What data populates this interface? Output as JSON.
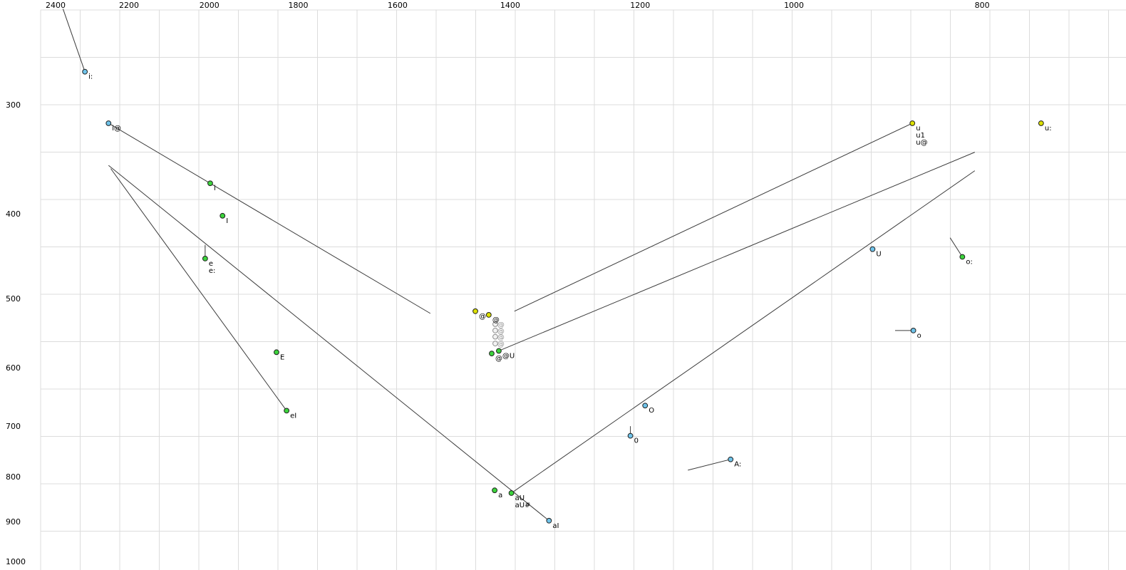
{
  "chart_data": {
    "type": "scatter",
    "title": "",
    "description": "Vowel formant plot: F2 (Hz) on top x-axis decreasing left-to-right, F1 (Hz) on left y-axis increasing downward, both log-scaled. Points are phoneme tokens, lines are diphthong/offglide trajectories.",
    "x_axis": {
      "label": "",
      "ticks": [
        2400,
        2200,
        2000,
        1800,
        1600,
        1400,
        1200,
        1000,
        800
      ],
      "scale": "log",
      "reversed": true,
      "position": "top",
      "min": 740,
      "max": 2420
    },
    "y_axis": {
      "label": "",
      "ticks": [
        300,
        400,
        500,
        600,
        700,
        800,
        900,
        1000
      ],
      "scale": "log",
      "reversed": false,
      "position": "left",
      "min": 230,
      "max": 1010
    },
    "grid": true,
    "colors": {
      "blue": "#6fc3ea",
      "green": "#3cd43c",
      "yellow": "#dce000",
      "gray_fill": "#f2f2f2",
      "gray_stroke": "#8f8f8f",
      "gray_text": "#8f8f8f",
      "point_stroke": "#1f1f1f",
      "line": "#3c3c3c",
      "grid": "#dcdcdc",
      "text": "#000000",
      "background": "#ffffff"
    },
    "points": [
      {
        "labels": [
          "i:"
        ],
        "f2": 2318,
        "f1": 275,
        "color": "blue",
        "line": {
          "f2": 2379,
          "f1": 233
        }
      },
      {
        "labels": [
          "i@"
        ],
        "f2": 2254,
        "f1": 315,
        "color": "blue",
        "line": {
          "f2": 1539,
          "f1": 520
        }
      },
      {
        "labels": [
          "i"
        ],
        "f2": 1998,
        "f1": 369,
        "color": "green"
      },
      {
        "labels": [
          "I"
        ],
        "f2": 1969,
        "f1": 402,
        "color": "green"
      },
      {
        "labels": [
          "e",
          "e:"
        ],
        "f2": 2010,
        "f1": 450,
        "color": "green",
        "line": {
          "f2": 2010,
          "f1": 434
        }
      },
      {
        "labels": [
          "E"
        ],
        "f2": 1847,
        "f1": 576,
        "color": "green"
      },
      {
        "labels": [
          "eI"
        ],
        "f2": 1825,
        "f1": 672,
        "color": "green",
        "line": {
          "f2": 2248,
          "f1": 355
        }
      },
      {
        "labels": [
          "a"
        ],
        "f2": 1426,
        "f1": 829,
        "color": "green"
      },
      {
        "labels": [
          "aU",
          "aU#"
        ],
        "f2": 1398,
        "f1": 835,
        "color": "green",
        "line": {
          "f2": 807,
          "f1": 357
        }
      },
      {
        "labels": [
          "aI"
        ],
        "f2": 1337,
        "f1": 898,
        "color": "blue",
        "line": {
          "f2": 2254,
          "f1": 352
        }
      },
      {
        "labels": [
          "@"
        ],
        "f2": 1459,
        "f1": 517,
        "color": "yellow"
      },
      {
        "labels": [
          "@"
        ],
        "f2": 1436,
        "f1": 522,
        "color": "yellow"
      },
      {
        "labels": [
          "@"
        ],
        "f2": 1425,
        "f1": 535,
        "color": "gray"
      },
      {
        "labels": [
          "@"
        ],
        "f2": 1425,
        "f1": 544,
        "color": "gray"
      },
      {
        "labels": [
          "@"
        ],
        "f2": 1425,
        "f1": 553,
        "color": "gray"
      },
      {
        "labels": [
          "@"
        ],
        "f2": 1425,
        "f1": 563,
        "color": "gray"
      },
      {
        "labels": [
          "@"
        ],
        "f2": 1431,
        "f1": 578,
        "color": "green"
      },
      {
        "labels": [
          "@U"
        ],
        "f2": 1419,
        "f1": 574,
        "color": "green",
        "line": {
          "f2": 807,
          "f1": 340
        }
      },
      {
        "labels": [
          "O"
        ],
        "f2": 1193,
        "f1": 663,
        "color": "blue"
      },
      {
        "labels": [
          "0"
        ],
        "f2": 1214,
        "f1": 718,
        "color": "blue",
        "line": {
          "f2": 1214,
          "f1": 700
        }
      },
      {
        "labels": [
          "A:"
        ],
        "f2": 1078,
        "f1": 764,
        "color": "blue",
        "line": {
          "f2": 1134,
          "f1": 786
        }
      },
      {
        "labels": [
          "U"
        ],
        "f2": 911,
        "f1": 439,
        "color": "blue"
      },
      {
        "labels": [
          "u",
          "u1",
          "u@"
        ],
        "f2": 869,
        "f1": 315,
        "color": "yellow",
        "line": {
          "f2": 1393,
          "f1": 517
        }
      },
      {
        "labels": [
          "u:"
        ],
        "f2": 746,
        "f1": 315,
        "color": "yellow"
      },
      {
        "labels": [
          "o:"
        ],
        "f2": 819,
        "f1": 448,
        "color": "green",
        "line": {
          "f2": 831,
          "f1": 426
        }
      },
      {
        "labels": [
          "o"
        ],
        "f2": 868,
        "f1": 544,
        "color": "blue",
        "line": {
          "f2": 887,
          "f1": 544
        }
      }
    ]
  }
}
